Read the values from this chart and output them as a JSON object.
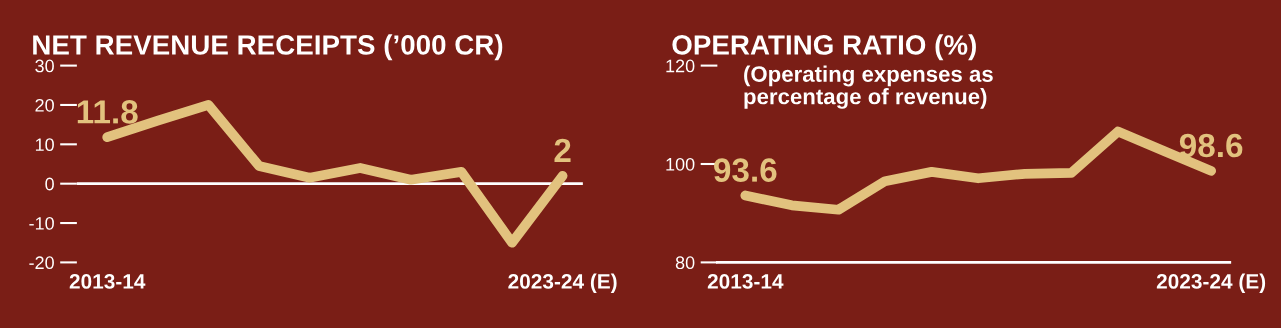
{
  "chart_data": [
    {
      "type": "line",
      "title": "NET REVENUE RECEIPTS (’000 CR)",
      "categories": [
        "2013-14",
        null,
        null,
        null,
        null,
        null,
        null,
        null,
        null,
        "2023-24 (E)"
      ],
      "series": [
        {
          "color": "#e2c27e",
          "values": [
            11.8,
            16,
            20,
            4.5,
            1.5,
            4,
            1,
            3,
            -15,
            2
          ],
          "value_labels": [
            "11.8",
            null,
            null,
            null,
            null,
            null,
            null,
            null,
            null,
            "2"
          ]
        }
      ],
      "ylim": [
        -20,
        30
      ],
      "yticks": [
        -20,
        -10,
        0,
        10,
        20,
        30
      ],
      "ref_lines": [
        {
          "axis": "y",
          "value": 0,
          "color": "#ffffff"
        }
      ],
      "marker": "none",
      "line_style": "solid"
    },
    {
      "type": "line",
      "title": "OPERATING RATIO (%)",
      "annotations": [
        "(Operating expenses as\npercentage of revenue)"
      ],
      "categories": [
        "2013-14",
        null,
        null,
        null,
        null,
        null,
        null,
        null,
        null,
        null,
        "2023-24 (E)"
      ],
      "series": [
        {
          "color": "#e2c27e",
          "values": [
            93.6,
            91.6,
            90.7,
            96.5,
            98.4,
            97.1,
            98,
            98.2,
            106.6,
            102.6,
            98.6
          ],
          "value_labels": [
            "93.6",
            null,
            null,
            null,
            null,
            null,
            null,
            null,
            null,
            null,
            "98.6"
          ]
        }
      ],
      "ylim": [
        80,
        120
      ],
      "yticks": [
        80,
        100,
        120
      ],
      "marker": "none",
      "line_style": "solid"
    }
  ]
}
